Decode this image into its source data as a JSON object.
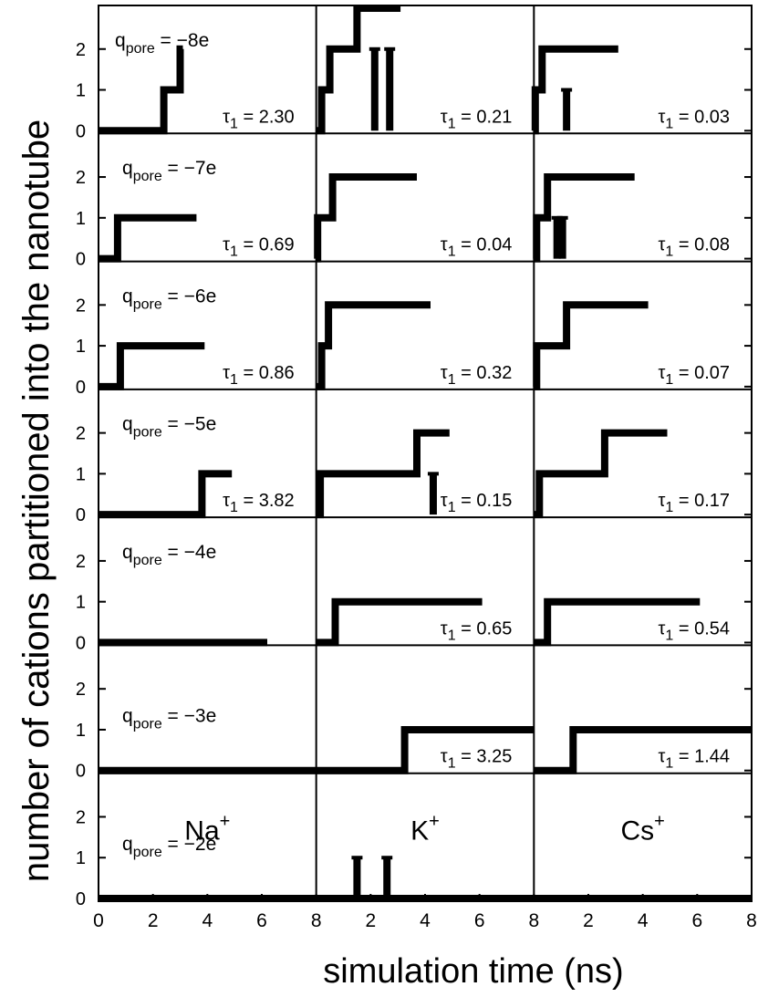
{
  "chart_data": {
    "type": "line",
    "step": true,
    "ylabel": "number of cations partitioned into the nanotube",
    "xlabel": "simulation time (ns)",
    "columns": [
      "Na",
      "K",
      "Cs"
    ],
    "column_labels": [
      {
        "base": "Na",
        "sup": "+"
      },
      {
        "base": "K",
        "sup": "+"
      },
      {
        "base": "Cs",
        "sup": "+"
      }
    ],
    "xlim": [
      0,
      8
    ],
    "ylim": [
      0,
      3
    ],
    "x_ticks": [
      "0",
      "2",
      "4",
      "6",
      "8"
    ],
    "y_ticks": [
      "0",
      "1",
      "2"
    ],
    "q_symbol": "q",
    "q_subscript": "pore",
    "tau_symbol": "τ",
    "tau_subscript": "1",
    "rows": [
      {
        "charge": "−8e",
        "panels": [
          {
            "tau": "2.30",
            "steps": [
              [
                0,
                0
              ],
              [
                2.4,
                0
              ],
              [
                2.4,
                1
              ],
              [
                3.0,
                1
              ],
              [
                3.0,
                2
              ],
              [
                3.1,
                2
              ]
            ],
            "spikes": []
          },
          {
            "tau": "0.21",
            "steps": [
              [
                0,
                0
              ],
              [
                0.2,
                0
              ],
              [
                0.2,
                1
              ],
              [
                0.5,
                1
              ],
              [
                0.5,
                2
              ],
              [
                1.5,
                2
              ],
              [
                1.5,
                3
              ],
              [
                3.1,
                3
              ]
            ],
            "spikes": [
              [
                2.15,
                2
              ],
              [
                2.7,
                2
              ]
            ]
          },
          {
            "tau": "0.03",
            "steps": [
              [
                0,
                0
              ],
              [
                0.05,
                0
              ],
              [
                0.05,
                1
              ],
              [
                0.3,
                1
              ],
              [
                0.3,
                2
              ],
              [
                3.1,
                2
              ]
            ],
            "spikes": [
              [
                1.2,
                1
              ]
            ]
          }
        ]
      },
      {
        "charge": "−7e",
        "panels": [
          {
            "tau": "0.69",
            "steps": [
              [
                0,
                0
              ],
              [
                0.7,
                0
              ],
              [
                0.7,
                1
              ],
              [
                3.6,
                1
              ]
            ],
            "spikes": []
          },
          {
            "tau": "0.04",
            "steps": [
              [
                0,
                0
              ],
              [
                0.05,
                0
              ],
              [
                0.05,
                1
              ],
              [
                0.6,
                1
              ],
              [
                0.6,
                2
              ],
              [
                3.7,
                2
              ]
            ],
            "spikes": []
          },
          {
            "tau": "0.08",
            "steps": [
              [
                0,
                0
              ],
              [
                0.1,
                0
              ],
              [
                0.1,
                1
              ],
              [
                0.5,
                1
              ],
              [
                0.5,
                2
              ],
              [
                3.7,
                2
              ]
            ],
            "spikes": [
              [
                0.85,
                1
              ],
              [
                1.05,
                1
              ]
            ]
          }
        ]
      },
      {
        "charge": "−6e",
        "panels": [
          {
            "tau": "0.86",
            "steps": [
              [
                0,
                0
              ],
              [
                0.8,
                0
              ],
              [
                0.8,
                1
              ],
              [
                3.9,
                1
              ]
            ],
            "spikes": []
          },
          {
            "tau": "0.32",
            "steps": [
              [
                0,
                0
              ],
              [
                0.2,
                0
              ],
              [
                0.2,
                1
              ],
              [
                0.45,
                1
              ],
              [
                0.45,
                2
              ],
              [
                4.2,
                2
              ]
            ],
            "spikes": []
          },
          {
            "tau": "0.07",
            "steps": [
              [
                0,
                0
              ],
              [
                0.1,
                0
              ],
              [
                0.1,
                1
              ],
              [
                1.2,
                1
              ],
              [
                1.2,
                2
              ],
              [
                4.2,
                2
              ]
            ],
            "spikes": []
          }
        ]
      },
      {
        "charge": "−5e",
        "panels": [
          {
            "tau": "3.82",
            "steps": [
              [
                0,
                0
              ],
              [
                3.8,
                0
              ],
              [
                3.8,
                1
              ],
              [
                4.9,
                1
              ]
            ],
            "spikes": []
          },
          {
            "tau": "0.15",
            "steps": [
              [
                0,
                0
              ],
              [
                0.15,
                0
              ],
              [
                0.15,
                1
              ],
              [
                3.7,
                1
              ],
              [
                3.7,
                2
              ],
              [
                4.9,
                2
              ]
            ],
            "spikes": [
              [
                4.3,
                1
              ]
            ]
          },
          {
            "tau": "0.17",
            "steps": [
              [
                0,
                0
              ],
              [
                0.2,
                0
              ],
              [
                0.2,
                1
              ],
              [
                2.6,
                1
              ],
              [
                2.6,
                2
              ],
              [
                4.9,
                2
              ]
            ],
            "spikes": []
          }
        ]
      },
      {
        "charge": "−4e",
        "panels": [
          {
            "tau": "",
            "steps": [
              [
                0,
                0
              ],
              [
                6.2,
                0
              ]
            ],
            "spikes": []
          },
          {
            "tau": "0.65",
            "steps": [
              [
                0,
                0
              ],
              [
                0.7,
                0
              ],
              [
                0.7,
                1
              ],
              [
                6.1,
                1
              ]
            ],
            "spikes": []
          },
          {
            "tau": "0.54",
            "steps": [
              [
                0,
                0
              ],
              [
                0.5,
                0
              ],
              [
                0.5,
                1
              ],
              [
                6.1,
                1
              ]
            ],
            "spikes": []
          }
        ]
      },
      {
        "charge": "−3e",
        "panels": [
          {
            "tau": "",
            "steps": [
              [
                0,
                0
              ],
              [
                8,
                0
              ]
            ],
            "spikes": []
          },
          {
            "tau": "3.25",
            "steps": [
              [
                0,
                0
              ],
              [
                3.25,
                0
              ],
              [
                3.25,
                1
              ],
              [
                8,
                1
              ]
            ],
            "spikes": []
          },
          {
            "tau": "1.44",
            "steps": [
              [
                0,
                0
              ],
              [
                1.44,
                0
              ],
              [
                1.44,
                1
              ],
              [
                8,
                1
              ]
            ],
            "spikes": []
          }
        ]
      },
      {
        "charge": "−2e",
        "panels": [
          {
            "tau": "",
            "steps": [
              [
                0,
                0
              ],
              [
                8,
                0
              ]
            ],
            "spikes": []
          },
          {
            "tau": "",
            "steps": [
              [
                0,
                0
              ],
              [
                8,
                0
              ]
            ],
            "spikes": [
              [
                1.5,
                1
              ],
              [
                2.6,
                1
              ]
            ]
          },
          {
            "tau": "",
            "steps": [
              [
                0,
                0
              ],
              [
                8,
                0
              ]
            ],
            "spikes": []
          }
        ]
      }
    ]
  }
}
